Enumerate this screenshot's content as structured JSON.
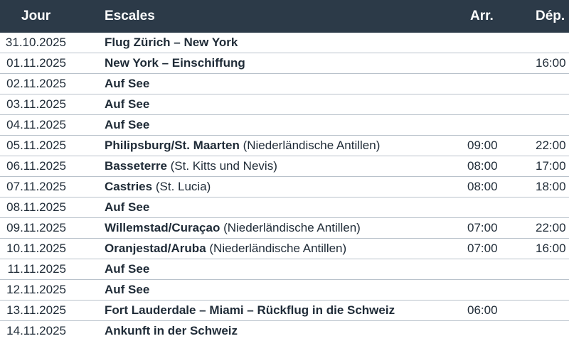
{
  "header": {
    "day": "Jour",
    "stops": "Escales",
    "arrival": "Arr.",
    "departure": "Dép."
  },
  "rows": [
    {
      "date": "31.10.2025",
      "stop": "Flug Zürich – New York",
      "country": "",
      "arr": "",
      "dep": ""
    },
    {
      "date": "01.11.2025",
      "stop": "New York – Einschiffung",
      "country": "",
      "arr": "",
      "dep": "16:00"
    },
    {
      "date": "02.11.2025",
      "stop": "Auf See",
      "country": "",
      "arr": "",
      "dep": ""
    },
    {
      "date": "03.11.2025",
      "stop": "Auf See",
      "country": "",
      "arr": "",
      "dep": ""
    },
    {
      "date": "04.11.2025",
      "stop": "Auf See",
      "country": "",
      "arr": "",
      "dep": ""
    },
    {
      "date": "05.11.2025",
      "stop": "Philipsburg/St. Maarten",
      "country": "(Niederländische Antillen)",
      "arr": "09:00",
      "dep": "22:00"
    },
    {
      "date": "06.11.2025",
      "stop": "Basseterre",
      "country": "(St. Kitts und Nevis)",
      "arr": "08:00",
      "dep": "17:00"
    },
    {
      "date": "07.11.2025",
      "stop": "Castries",
      "country": "(St. Lucia)",
      "arr": "08:00",
      "dep": "18:00"
    },
    {
      "date": "08.11.2025",
      "stop": "Auf See",
      "country": "",
      "arr": "",
      "dep": ""
    },
    {
      "date": "09.11.2025",
      "stop": "Willemstad/Curaçao",
      "country": "(Niederländische Antillen)",
      "arr": "07:00",
      "dep": "22:00"
    },
    {
      "date": "10.11.2025",
      "stop": "Oranjestad/Aruba",
      "country": "(Niederländische Antillen)",
      "arr": "07:00",
      "dep": "16:00"
    },
    {
      "date": "11.11.2025",
      "stop": "Auf See",
      "country": "",
      "arr": "",
      "dep": ""
    },
    {
      "date": "12.11.2025",
      "stop": "Auf See",
      "country": "",
      "arr": "",
      "dep": ""
    },
    {
      "date": "13.11.2025",
      "stop": "Fort Lauderdale – Miami – Rückflug in die Schweiz",
      "country": "",
      "arr": "06:00",
      "dep": ""
    },
    {
      "date": "14.11.2025",
      "stop": "Ankunft in der Schweiz",
      "country": "",
      "arr": "",
      "dep": ""
    }
  ]
}
